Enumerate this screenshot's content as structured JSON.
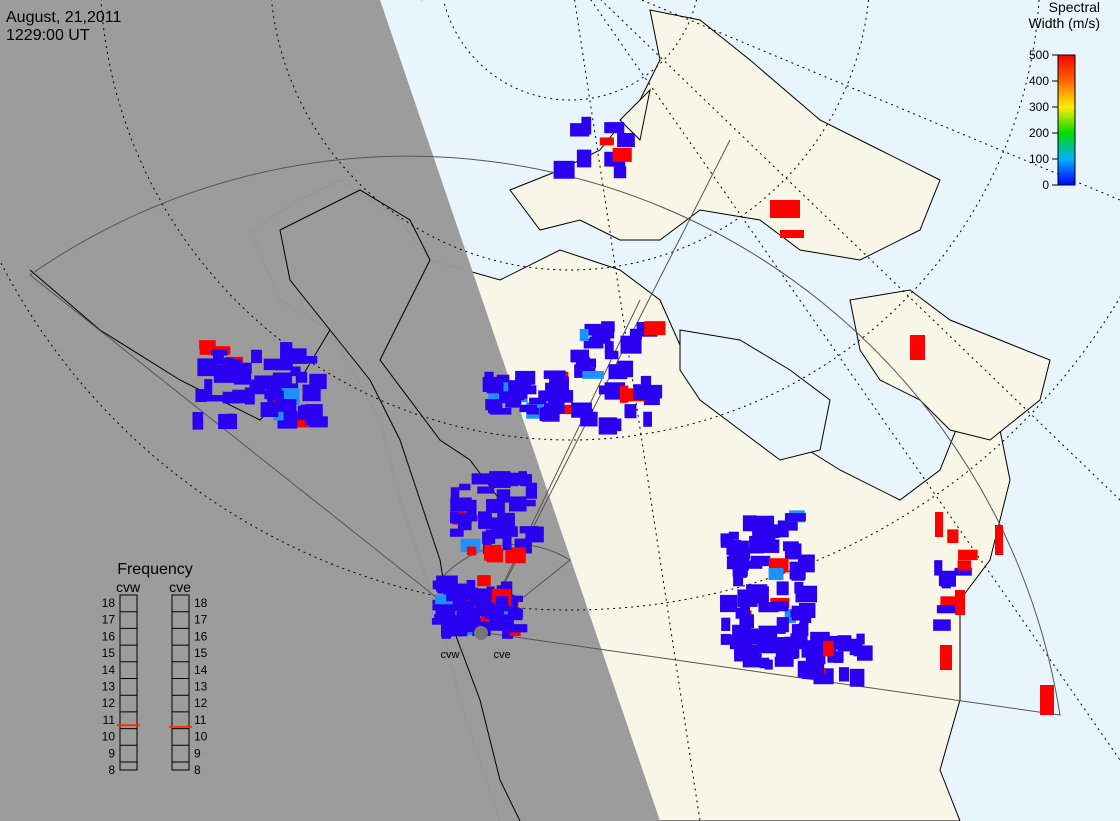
{
  "header": {
    "date": "August, 21,2011",
    "time": "1229:00 UT"
  },
  "colorbar": {
    "title_lines": [
      "Spectral",
      "Width (m/s)"
    ],
    "range": [
      0,
      500
    ],
    "ticks": [
      0,
      100,
      200,
      300,
      400,
      500
    ]
  },
  "frequency": {
    "title": "Frequency",
    "range": [
      8,
      18
    ],
    "ticks": [
      18,
      17,
      16,
      15,
      14,
      13,
      12,
      11,
      10,
      9,
      8
    ],
    "radars": [
      {
        "name": "cvw",
        "value": 10.7
      },
      {
        "name": "cve",
        "value": 10.6
      }
    ]
  },
  "sites": [
    "cvw",
    "cve"
  ]
}
